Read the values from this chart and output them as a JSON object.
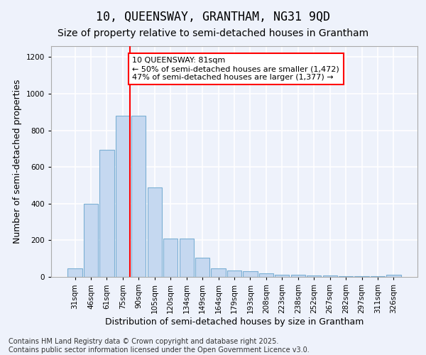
{
  "title_line1": "10, QUEENSWAY, GRANTHAM, NG31 9QD",
  "title_line2": "Size of property relative to semi-detached houses in Grantham",
  "xlabel": "Distribution of semi-detached houses by size in Grantham",
  "ylabel": "Number of semi-detached properties",
  "categories": [
    "31sqm",
    "46sqm",
    "61sqm",
    "75sqm",
    "90sqm",
    "105sqm",
    "120sqm",
    "134sqm",
    "149sqm",
    "164sqm",
    "179sqm",
    "193sqm",
    "208sqm",
    "223sqm",
    "238sqm",
    "252sqm",
    "267sqm",
    "282sqm",
    "297sqm",
    "311sqm",
    "326sqm"
  ],
  "values": [
    45,
    400,
    695,
    880,
    880,
    490,
    210,
    210,
    105,
    45,
    35,
    30,
    20,
    12,
    12,
    8,
    8,
    5,
    5,
    5,
    10
  ],
  "bar_color": "#c5d8f0",
  "bar_edge_color": "#7bafd4",
  "vline_x_index": 3,
  "vline_color": "red",
  "annotation_text": "10 QUEENSWAY: 81sqm\n← 50% of semi-detached houses are smaller (1,472)\n47% of semi-detached houses are larger (1,377) →",
  "annotation_box_color": "white",
  "annotation_box_edge_color": "red",
  "ylim": [
    0,
    1260
  ],
  "yticks": [
    0,
    200,
    400,
    600,
    800,
    1000,
    1200
  ],
  "footer_line1": "Contains HM Land Registry data © Crown copyright and database right 2025.",
  "footer_line2": "Contains public sector information licensed under the Open Government Licence v3.0.",
  "bg_color": "#eef2fb",
  "plot_bg_color": "#eef2fb",
  "grid_color": "white",
  "title_fontsize": 12,
  "subtitle_fontsize": 10,
  "axis_label_fontsize": 9,
  "tick_fontsize": 7.5,
  "annotation_fontsize": 8,
  "footer_fontsize": 7
}
